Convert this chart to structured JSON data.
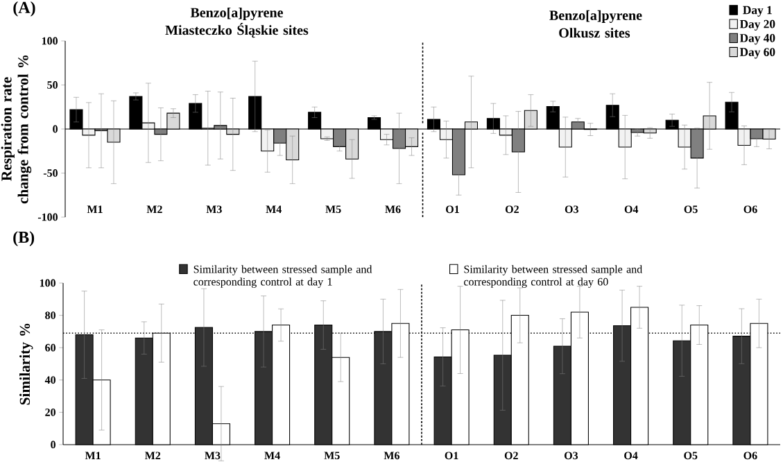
{
  "chart_data": [
    {
      "type": "bar",
      "title": "(A)",
      "annotations": [
        "Benzo[a]pyrene Miasteczko Śląskie sites",
        "Benzo[a]pyrene Olkusz sites"
      ],
      "ylabel": "Respiration rate change from control %",
      "categories": [
        "M1",
        "M2",
        "M3",
        "M4",
        "M5",
        "M6",
        "O1",
        "O2",
        "O3",
        "O4",
        "O5",
        "O6"
      ],
      "ylim": [
        -100,
        100
      ],
      "yticks": [
        -100,
        -50,
        0,
        50,
        100
      ],
      "legend": "top right",
      "series": [
        {
          "name": "Day 1",
          "color": "#000000",
          "values": [
            22,
            37,
            29,
            37,
            19,
            13,
            11,
            12,
            25.5,
            27,
            10,
            30.5
          ],
          "errors": [
            14,
            4,
            10,
            40,
            6,
            2,
            14,
            17,
            6,
            13,
            7,
            11
          ]
        },
        {
          "name": "Day 20",
          "color": "#f2f2f2",
          "values": [
            -7,
            7,
            1,
            -25,
            -11,
            -12,
            -12,
            -7,
            -20.5,
            -20.5,
            -20.5,
            -18.5
          ],
          "errors": [
            37,
            45,
            42,
            24,
            2,
            6,
            21,
            22,
            34,
            36,
            25,
            22
          ]
        },
        {
          "name": "Day 40",
          "color": "#808080",
          "values": [
            -2,
            -6,
            4,
            -16,
            -20,
            -22,
            -52,
            -26,
            8,
            -4,
            -33,
            -11
          ],
          "errors": [
            42,
            30,
            38,
            14,
            5,
            40,
            23,
            46,
            4,
            4,
            34,
            9
          ]
        },
        {
          "name": "Day 60",
          "color": "#d9d9d9",
          "values": [
            -15,
            18,
            -6,
            -35,
            -34,
            -20,
            8,
            21,
            -0.5,
            -4.5,
            15,
            -11.5
          ],
          "errors": [
            47,
            5,
            41,
            27,
            22,
            10,
            52,
            18,
            7,
            6,
            38,
            11
          ]
        }
      ]
    },
    {
      "type": "bar",
      "title": "(B)",
      "ylabel": "Similarity %",
      "categories": [
        "M1",
        "M2",
        "M3",
        "M4",
        "M5",
        "M6",
        "O1",
        "O2",
        "O3",
        "O4",
        "O5",
        "O6"
      ],
      "ylim": [
        0,
        100
      ],
      "yticks": [
        0,
        20,
        40,
        60,
        80,
        100
      ],
      "legend": "top",
      "ref_lines": [
        {
          "axis": "y",
          "value": 69,
          "line_style": "dotted"
        }
      ],
      "series": [
        {
          "name": "Similarity between stressed sample and corresponding control at day 1",
          "color": "#333333",
          "values": [
            68,
            66,
            72.5,
            70,
            74,
            70,
            54.3,
            55.3,
            60.9,
            73.6,
            64.3,
            67.1
          ],
          "errors": [
            27,
            10,
            24,
            22,
            15,
            20,
            18,
            34,
            17,
            22,
            22,
            17
          ]
        },
        {
          "name": "Similarity between stressed sample and corresponding control at day 60",
          "color": "#ffffff",
          "values": [
            40,
            69,
            13,
            74,
            54,
            75,
            71,
            80,
            82,
            85,
            74,
            75
          ],
          "errors": [
            31,
            18,
            23,
            10,
            15,
            21,
            27,
            17,
            16,
            13,
            12,
            15
          ]
        }
      ]
    }
  ]
}
